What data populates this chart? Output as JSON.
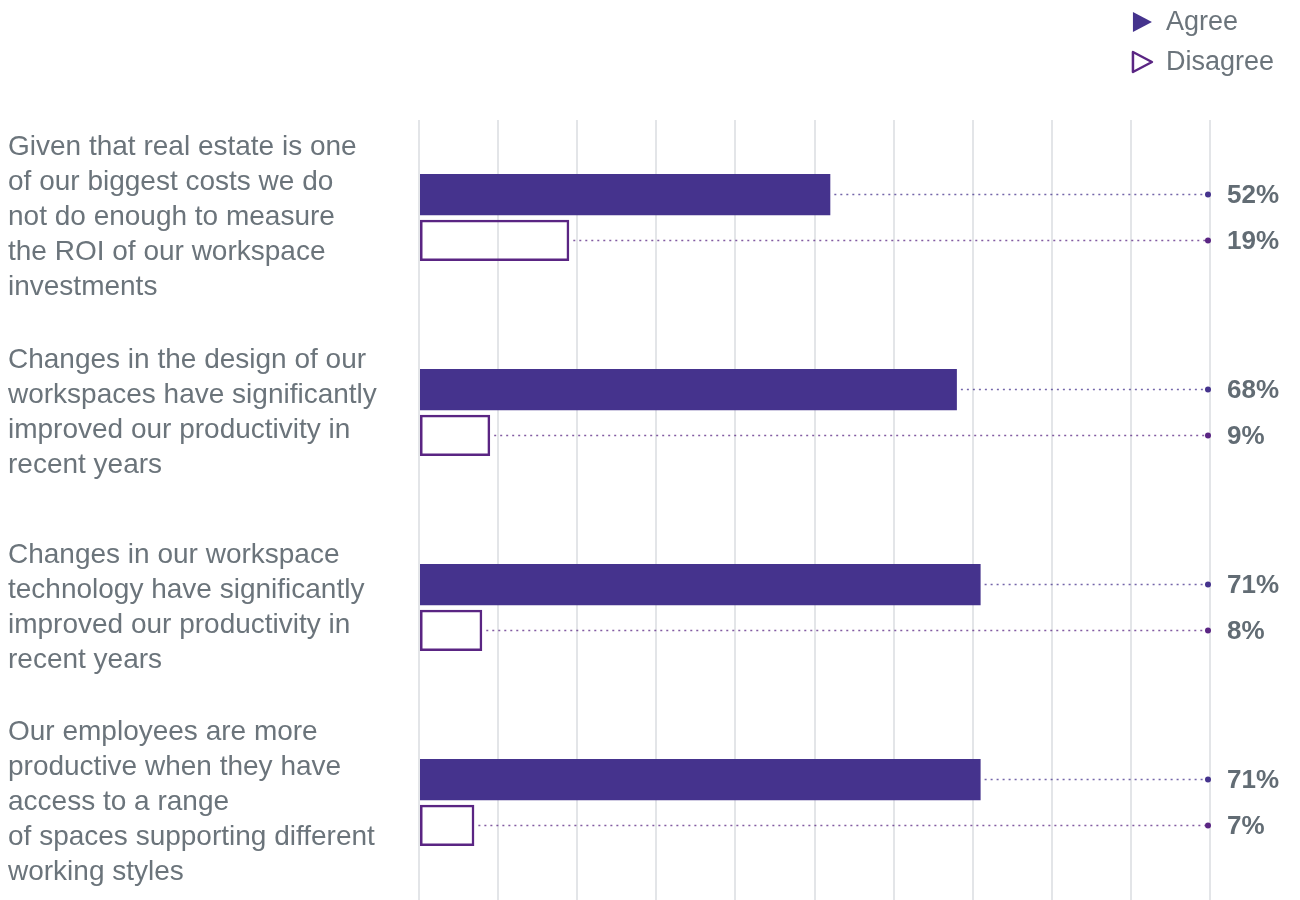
{
  "chart_data": {
    "type": "bar",
    "orientation": "horizontal",
    "categories": [
      "Given that real estate is one\nof our biggest costs we do\nnot do enough to measure\nthe ROI of our workspace\ninvestments",
      "Changes in the design of our\nworkspaces have significantly\nimproved our productivity in\nrecent years",
      "Changes in our workspace\ntechnology have significantly\nimproved our productivity in\nrecent years",
      "Our employees are more\nproductive when they have\naccess to a range\nof spaces supporting different\nworking styles"
    ],
    "series": [
      {
        "name": "Agree",
        "color": "#45338d",
        "values": [
          52,
          68,
          71,
          71
        ],
        "value_labels": [
          "52%",
          "68%",
          "71%",
          "71%"
        ]
      },
      {
        "name": "Disagree",
        "color": "#5a2583",
        "values": [
          19,
          9,
          8,
          7
        ],
        "value_labels": [
          "19%",
          "9%",
          "8%",
          "7%"
        ]
      }
    ],
    "xlim": [
      0,
      100
    ],
    "xticks": [
      {
        "value": 0,
        "label": null
      },
      {
        "value": 10,
        "label": null
      },
      {
        "value": 20,
        "label": null
      },
      {
        "value": 30,
        "label": null
      },
      {
        "value": 40,
        "label": null
      },
      {
        "value": 50,
        "label": null
      },
      {
        "value": 60,
        "label": null
      },
      {
        "value": 70,
        "label": null
      },
      {
        "value": 80,
        "label": null
      },
      {
        "value": 90,
        "label": null
      },
      {
        "value": 100,
        "label": null
      }
    ],
    "grid": "x",
    "legend": "top right",
    "tick_labels": "y"
  }
}
